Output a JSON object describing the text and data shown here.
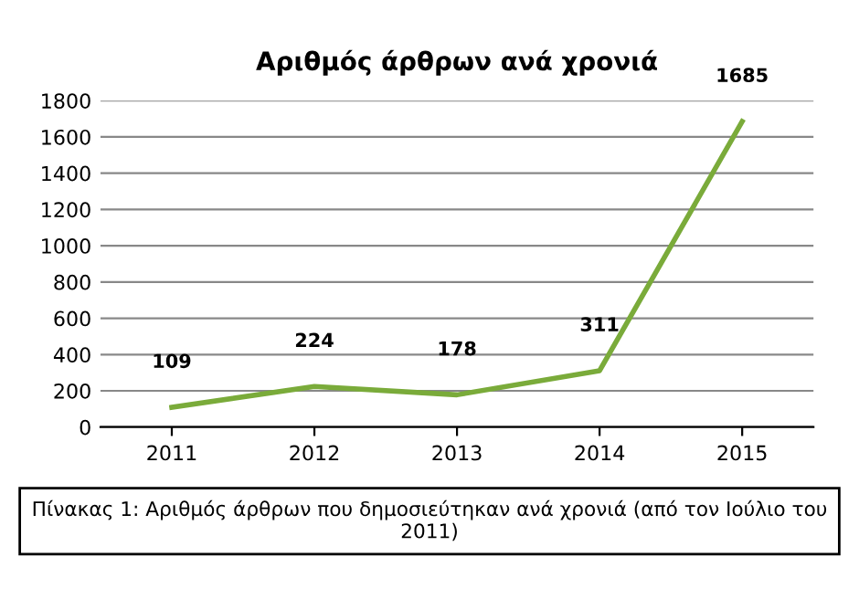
{
  "chart_data": {
    "type": "line",
    "title": "Αριθμός άρθρων ανά χρονιά",
    "categories": [
      "2011",
      "2012",
      "2013",
      "2014",
      "2015"
    ],
    "series": [
      {
        "color": "#7aab3a",
        "values": [
          109,
          224,
          178,
          311,
          1685
        ]
      }
    ],
    "ylim": [
      0,
      1800
    ],
    "yticks": [
      0,
      200,
      400,
      600,
      800,
      1000,
      1200,
      1400,
      1600,
      1800
    ],
    "grid": "y",
    "data_labels": true,
    "marker": "none",
    "line_style": "solid",
    "legend": false,
    "annotations": [
      "Πίνακας 1: Αριθμός άρθρων που δημοσιεύτηκαν ανά χρονιά (από τον Ιούλιο του 2011)"
    ]
  }
}
